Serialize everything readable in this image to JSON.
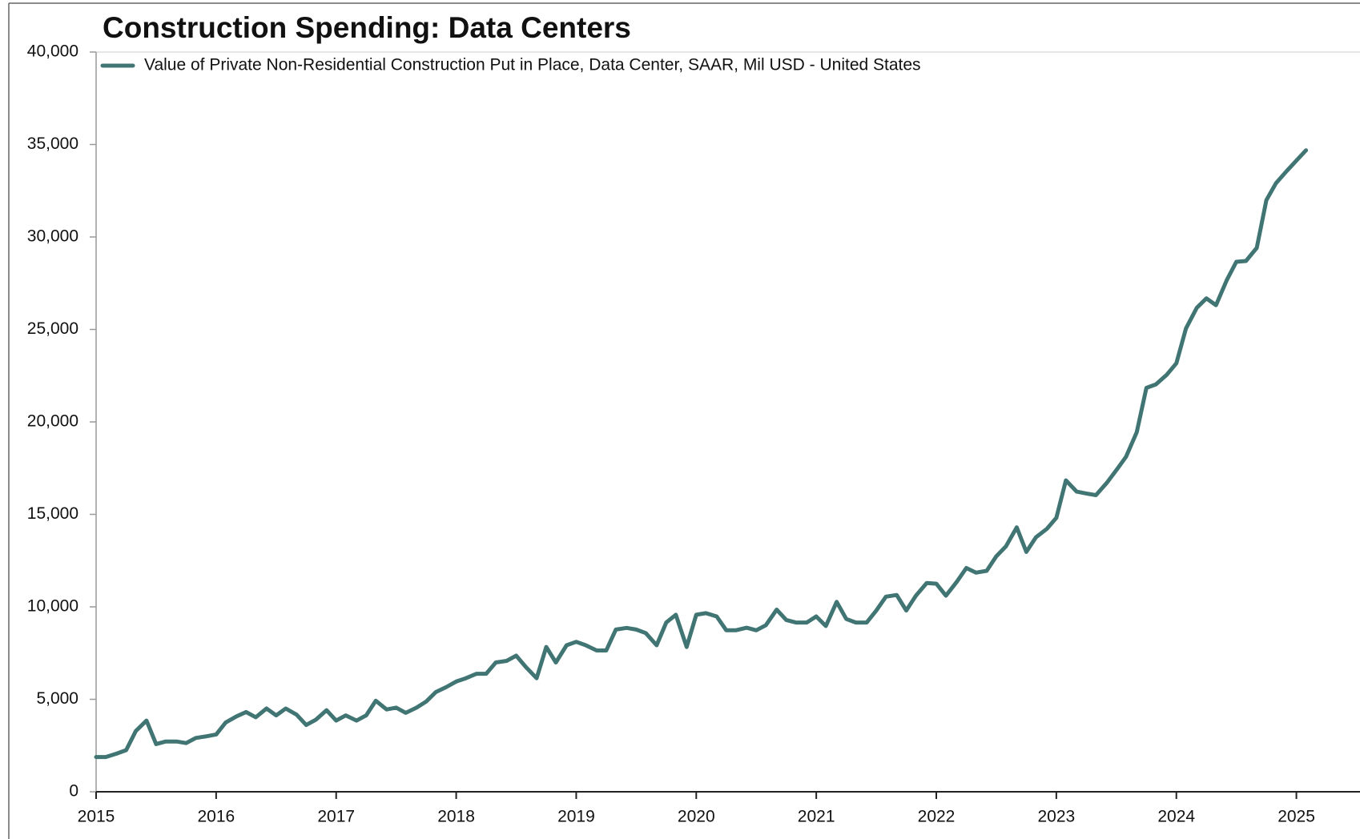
{
  "chart_data": {
    "type": "line",
    "title": "Construction Spending: Data Centers",
    "x": [
      2015,
      2015.08,
      2015.17,
      2015.25,
      2015.33,
      2015.42,
      2015.5,
      2015.58,
      2015.67,
      2015.75,
      2015.83,
      2015.92,
      2016,
      2016.08,
      2016.17,
      2016.25,
      2016.33,
      2016.42,
      2016.5,
      2016.58,
      2016.67,
      2016.75,
      2016.83,
      2016.92,
      2017,
      2017.08,
      2017.17,
      2017.25,
      2017.33,
      2017.42,
      2017.5,
      2017.58,
      2017.67,
      2017.75,
      2017.83,
      2017.92,
      2018,
      2018.08,
      2018.17,
      2018.25,
      2018.33,
      2018.42,
      2018.5,
      2018.58,
      2018.67,
      2018.75,
      2018.83,
      2018.92,
      2019,
      2019.08,
      2019.17,
      2019.25,
      2019.33,
      2019.42,
      2019.5,
      2019.58,
      2019.67,
      2019.75,
      2019.83,
      2019.92,
      2020,
      2020.08,
      2020.17,
      2020.25,
      2020.33,
      2020.42,
      2020.5,
      2020.58,
      2020.67,
      2020.75,
      2020.83,
      2020.92,
      2021,
      2021.08,
      2021.17,
      2021.25,
      2021.33,
      2021.42,
      2021.5,
      2021.58,
      2021.67,
      2021.75,
      2021.83,
      2021.92,
      2022,
      2022.08,
      2022.17,
      2022.25,
      2022.33,
      2022.42,
      2022.5,
      2022.58,
      2022.67,
      2022.75,
      2022.83,
      2022.92,
      2023,
      2023.08,
      2023.17,
      2023.25,
      2023.33,
      2023.42,
      2023.5,
      2023.58,
      2023.67,
      2023.75,
      2023.83,
      2023.92,
      2024,
      2024.08,
      2024.17,
      2024.25,
      2024.33,
      2024.42,
      2024.5,
      2024.58,
      2024.67,
      2024.75,
      2024.83,
      2024.92,
      2025,
      2025.08
    ],
    "series": [
      {
        "name": "Value of Private Non-Residential Construction Put in Place, Data Center, SAAR, Mil USD - United States",
        "color": "#407574",
        "values": [
          1880,
          1880,
          2060,
          2250,
          3280,
          3850,
          2580,
          2720,
          2720,
          2630,
          2910,
          3000,
          3100,
          3750,
          4080,
          4310,
          4030,
          4500,
          4130,
          4500,
          4170,
          3610,
          3890,
          4410,
          3850,
          4130,
          3850,
          4130,
          4920,
          4450,
          4550,
          4270,
          4550,
          4880,
          5390,
          5670,
          5960,
          6140,
          6380,
          6380,
          6990,
          7080,
          7360,
          6750,
          6140,
          7830,
          6990,
          7920,
          8110,
          7920,
          7640,
          7640,
          8770,
          8860,
          8770,
          8580,
          7920,
          9150,
          9570,
          7830,
          9570,
          9660,
          9480,
          8730,
          8730,
          8870,
          8730,
          9010,
          9850,
          9290,
          9150,
          9150,
          9480,
          8960,
          10270,
          9340,
          9150,
          9150,
          9800,
          10550,
          10640,
          9800,
          10600,
          11290,
          11250,
          10600,
          11350,
          12100,
          11850,
          11950,
          12730,
          13270,
          14300,
          12970,
          13760,
          14210,
          14820,
          16840,
          16230,
          16130,
          16040,
          16700,
          17390,
          18110,
          19450,
          21840,
          22030,
          22550,
          23170,
          25050,
          26170,
          26680,
          26310,
          27670,
          28660,
          28700,
          29410,
          31990,
          32910,
          33570,
          34130,
          34690
        ]
      }
    ],
    "xlim": [
      2015,
      2025.53
    ],
    "xticks": [
      2015,
      2016,
      2017,
      2018,
      2019,
      2020,
      2021,
      2022,
      2023,
      2024,
      2025
    ],
    "ylim": [
      0,
      40000
    ],
    "yticks": [
      0,
      {
        "value": 5000,
        "label": "5,000"
      },
      {
        "value": 10000,
        "label": "10,000"
      },
      {
        "value": 15000,
        "label": "15,000"
      },
      {
        "value": 20000,
        "label": "20,000"
      },
      {
        "value": 25000,
        "label": "25,000"
      },
      {
        "value": 30000,
        "label": "30,000"
      },
      {
        "value": 35000,
        "label": "35,000"
      },
      {
        "value": 40000,
        "label": "40,000"
      }
    ],
    "grid": false
  }
}
